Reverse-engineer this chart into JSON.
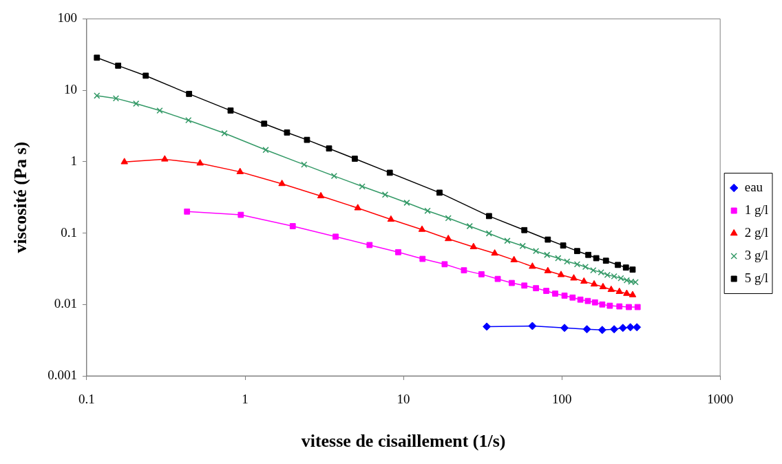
{
  "chart_data": {
    "type": "line",
    "xlabel": "vitesse de cisaillement (1/s)",
    "ylabel": "viscosité (Pa s)",
    "log": "xy",
    "grid": false,
    "legend": "right",
    "line_style": "solid",
    "xlim": [
      0.1,
      1000
    ],
    "xticks": [
      0.1,
      1,
      10,
      100,
      1000
    ],
    "ylim": [
      0.001,
      100
    ],
    "yticks": [
      0.001,
      0.01,
      0.1,
      1,
      10,
      100
    ],
    "series": [
      {
        "name": "eau",
        "color": "#0000ff",
        "marker": "diamond",
        "x": [
          33.6,
          65.2,
          104,
          144,
          180,
          214,
          243,
          271,
          298
        ],
        "values": [
          0.0049,
          0.005,
          0.0047,
          0.0045,
          0.0044,
          0.0045,
          0.0047,
          0.0048,
          0.0048
        ]
      },
      {
        "name": "1 g/l",
        "color": "#ff00ff",
        "marker": "square",
        "x": [
          0.43,
          0.94,
          2.0,
          3.73,
          6.11,
          9.27,
          13.2,
          18.2,
          24.1,
          31.1,
          39.4,
          48.3,
          58,
          68.7,
          79.8,
          90.8,
          104,
          117,
          131,
          146,
          162,
          180,
          201,
          231,
          265,
          301
        ],
        "values": [
          0.2,
          0.18,
          0.125,
          0.089,
          0.068,
          0.054,
          0.0435,
          0.0366,
          0.0301,
          0.0265,
          0.0228,
          0.02,
          0.0184,
          0.0169,
          0.0155,
          0.0142,
          0.0133,
          0.0125,
          0.0117,
          0.0112,
          0.0107,
          0.01,
          0.0096,
          0.0094,
          0.0092,
          0.0092
        ]
      },
      {
        "name": "2 g/l",
        "color": "#ff0000",
        "marker": "triangle",
        "x": [
          0.173,
          0.311,
          0.52,
          0.93,
          1.71,
          3.01,
          5.15,
          8.34,
          13.1,
          19.2,
          27.7,
          37.7,
          49.9,
          65.2,
          81.6,
          98.9,
          119,
          138,
          160,
          182,
          205,
          231,
          257,
          280
        ],
        "values": [
          0.99,
          1.08,
          0.95,
          0.72,
          0.49,
          0.33,
          0.224,
          0.155,
          0.112,
          0.083,
          0.064,
          0.052,
          0.042,
          0.034,
          0.0295,
          0.026,
          0.0233,
          0.021,
          0.0192,
          0.0176,
          0.0161,
          0.0151,
          0.0142,
          0.0136
        ]
      },
      {
        "name": "3 g/l",
        "color": "#339966",
        "marker": "cross",
        "x": [
          0.116,
          0.153,
          0.205,
          0.289,
          0.439,
          0.741,
          1.35,
          2.36,
          3.65,
          5.49,
          7.66,
          10.5,
          14.2,
          19.2,
          26.2,
          34.7,
          45.3,
          56.6,
          68.7,
          80.7,
          94.8,
          108,
          125,
          141,
          158,
          177,
          194,
          214,
          236,
          257,
          274,
          292
        ],
        "values": [
          8.4,
          7.7,
          6.5,
          5.2,
          3.8,
          2.5,
          1.46,
          0.91,
          0.63,
          0.45,
          0.345,
          0.266,
          0.205,
          0.162,
          0.125,
          0.099,
          0.078,
          0.066,
          0.056,
          0.0495,
          0.0445,
          0.04,
          0.0366,
          0.0336,
          0.0301,
          0.0282,
          0.0259,
          0.0248,
          0.0233,
          0.0218,
          0.0209,
          0.0205
        ]
      },
      {
        "name": "5 g/l",
        "color": "#000000",
        "marker": "square",
        "x": [
          0.116,
          0.158,
          0.236,
          0.443,
          0.81,
          1.32,
          1.84,
          2.46,
          3.39,
          4.93,
          8.2,
          16.9,
          34.7,
          58,
          81.6,
          102,
          125,
          147,
          165,
          190,
          226,
          254,
          280
        ],
        "values": [
          28.6,
          22.1,
          16,
          8.9,
          5.2,
          3.4,
          2.56,
          2.02,
          1.53,
          1.1,
          0.7,
          0.368,
          0.173,
          0.11,
          0.081,
          0.067,
          0.056,
          0.0495,
          0.0445,
          0.041,
          0.0358,
          0.0329,
          0.0308
        ]
      }
    ]
  }
}
